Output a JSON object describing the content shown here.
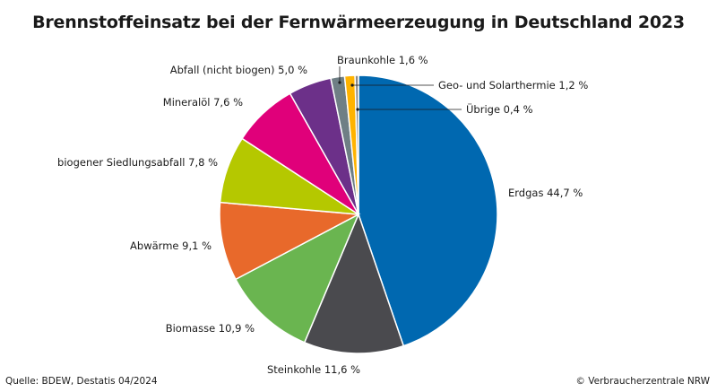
{
  "chart_data": {
    "type": "pie",
    "title": "Brennstoffeinsatz bei der Fernwärmeerzeugung in Deutschland 2023",
    "unit": "%",
    "categories": [
      "Erdgas",
      "Steinkohle",
      "Biomasse",
      "Abwärme",
      "biogener Siedlungsabfall",
      "Mineralöl",
      "Abfall (nicht biogen)",
      "Braunkohle",
      "Geo- und Solarthermie",
      "Übrige"
    ],
    "values": [
      44.7,
      11.6,
      10.9,
      9.1,
      7.8,
      7.6,
      5.0,
      1.6,
      1.2,
      0.4
    ],
    "labels": [
      "Erdgas 44,7 %",
      "Steinkohle 11,6 %",
      "Biomasse 10,9 %",
      "Abwärme 9,1 %",
      "biogener Siedlungsabfall 7,8 %",
      "Mineralöl 7,6 %",
      "Abfall (nicht biogen) 5,0 %",
      "Braunkohle 1,6 %",
      "Geo- und Solarthermie 1,2 %",
      "Übrige 0,4 %"
    ],
    "colors": [
      "#0068b0",
      "#4a4a4e",
      "#6ab550",
      "#e8692b",
      "#b5c800",
      "#e0007a",
      "#6c3089",
      "#6f7f85",
      "#ffb300",
      "#8a8a8a"
    ],
    "start_angle_deg": 0,
    "direction": "clockwise"
  },
  "footer": {
    "source": "Quelle: BDEW, Destatis 04/2024",
    "copyright": "© Verbraucherzentrale NRW"
  }
}
